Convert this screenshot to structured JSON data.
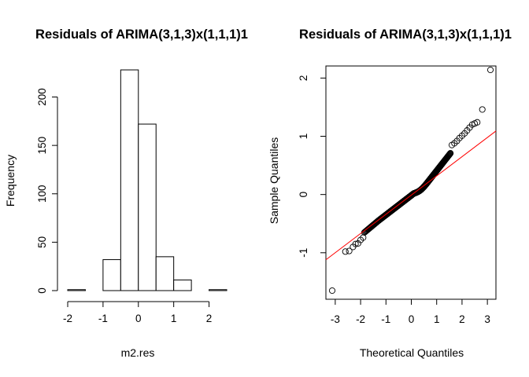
{
  "chart_data": [
    {
      "type": "bar",
      "title": "Residuals of ARIMA(3,1,3)x(1,1,1)1",
      "xlabel": "m2.res",
      "ylabel": "Frequency",
      "bins": [
        {
          "from": -2.0,
          "to": -1.5,
          "count": 1
        },
        {
          "from": -1.5,
          "to": -1.0,
          "count": 0
        },
        {
          "from": -1.0,
          "to": -0.5,
          "count": 32
        },
        {
          "from": -0.5,
          "to": 0.0,
          "count": 228
        },
        {
          "from": 0.0,
          "to": 0.5,
          "count": 172
        },
        {
          "from": 0.5,
          "to": 1.0,
          "count": 35
        },
        {
          "from": 1.0,
          "to": 1.5,
          "count": 11
        },
        {
          "from": 1.5,
          "to": 2.0,
          "count": 0
        },
        {
          "from": 2.0,
          "to": 2.5,
          "count": 1
        }
      ],
      "xlim": [
        -2,
        2.5
      ],
      "ylim": [
        0,
        228
      ],
      "xticks": [
        "-2",
        "-1",
        "0",
        "1",
        "2"
      ],
      "yticks": [
        "0",
        "50",
        "100",
        "150",
        "200"
      ]
    },
    {
      "type": "scatter",
      "title": "Residuals of ARIMA(3,1,3)x(1,1,1)1",
      "xlabel": "Theoretical Quantiles",
      "ylabel": "Sample Quantiles",
      "xlim": [
        -3.12,
        3.12
      ],
      "ylim": [
        -1.65,
        2.14
      ],
      "xticks": [
        "-3",
        "-2",
        "-1",
        "0",
        "1",
        "2",
        "3"
      ],
      "yticks": [
        "-1",
        "0",
        "1",
        "2"
      ],
      "qq_line": {
        "intercept": -0.015,
        "slope": 0.335,
        "color": "#ff0000"
      },
      "points": {
        "n": 480,
        "tail_points": [
          {
            "x": -3.12,
            "y": -1.65
          },
          {
            "x": -2.6,
            "y": -0.98
          },
          {
            "x": -2.45,
            "y": -0.97
          },
          {
            "x": -2.3,
            "y": -0.9
          },
          {
            "x": -2.2,
            "y": -0.85
          },
          {
            "x": -2.1,
            "y": -0.84
          },
          {
            "x": -2.0,
            "y": -0.78
          },
          {
            "x": -1.9,
            "y": -0.74
          },
          {
            "x": 1.6,
            "y": 0.85
          },
          {
            "x": 1.7,
            "y": 0.88
          },
          {
            "x": 1.8,
            "y": 0.92
          },
          {
            "x": 1.9,
            "y": 0.97
          },
          {
            "x": 2.0,
            "y": 1.01
          },
          {
            "x": 2.1,
            "y": 1.05
          },
          {
            "x": 2.2,
            "y": 1.1
          },
          {
            "x": 2.3,
            "y": 1.15
          },
          {
            "x": 2.4,
            "y": 1.2
          },
          {
            "x": 2.5,
            "y": 1.22
          },
          {
            "x": 2.6,
            "y": 1.24
          },
          {
            "x": 2.8,
            "y": 1.46
          },
          {
            "x": 3.12,
            "y": 2.14
          }
        ]
      }
    }
  ]
}
